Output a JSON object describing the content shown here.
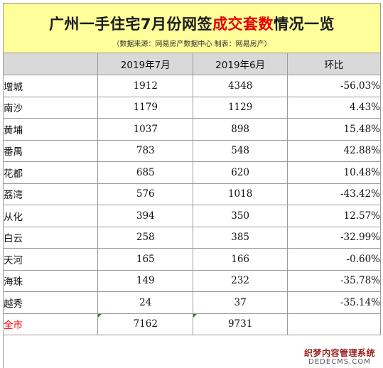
{
  "title": {
    "prefix": "广州一手住宅7月份网签",
    "highlight": "成交套数",
    "suffix": "情况一览",
    "highlight_color": "#e60000"
  },
  "subtitle": "（数据来源：网易房产数据中心  制表：网易房产）",
  "header": {
    "district": "",
    "jul": "2019年7月",
    "jun": "2019年6月",
    "ratio": "环比"
  },
  "rows": [
    {
      "name": "增城",
      "jul": "1912",
      "jun": "4348",
      "ratio": "-56.03%"
    },
    {
      "name": "南沙",
      "jul": "1179",
      "jun": "1129",
      "ratio": "4.43%"
    },
    {
      "name": "黄埔",
      "jul": "1037",
      "jun": "898",
      "ratio": "15.48%"
    },
    {
      "name": "番禺",
      "jul": "783",
      "jun": "548",
      "ratio": "42.88%"
    },
    {
      "name": "花都",
      "jul": "685",
      "jun": "620",
      "ratio": "10.48%"
    },
    {
      "name": "荔湾",
      "jul": "576",
      "jun": "1018",
      "ratio": "-43.42%"
    },
    {
      "name": "从化",
      "jul": "394",
      "jun": "350",
      "ratio": "12.57%"
    },
    {
      "name": "白云",
      "jul": "258",
      "jun": "385",
      "ratio": "-32.99%"
    },
    {
      "name": "天河",
      "jul": "165",
      "jun": "166",
      "ratio": "-0.60%"
    },
    {
      "name": "海珠",
      "jul": "149",
      "jun": "232",
      "ratio": "-35.78%"
    },
    {
      "name": "越秀",
      "jul": "24",
      "jun": "37",
      "ratio": "-35.14%"
    }
  ],
  "total": {
    "name": "全市",
    "jul": "7162",
    "jun": "9731",
    "ratio": ""
  },
  "watermark": {
    "main": "织梦内容管理系统",
    "sub": "DEDECMS.COM"
  },
  "colors": {
    "title_bg": "#fefe9a",
    "header_bg": "#d9d9d9",
    "total_text": "#ff0000"
  }
}
